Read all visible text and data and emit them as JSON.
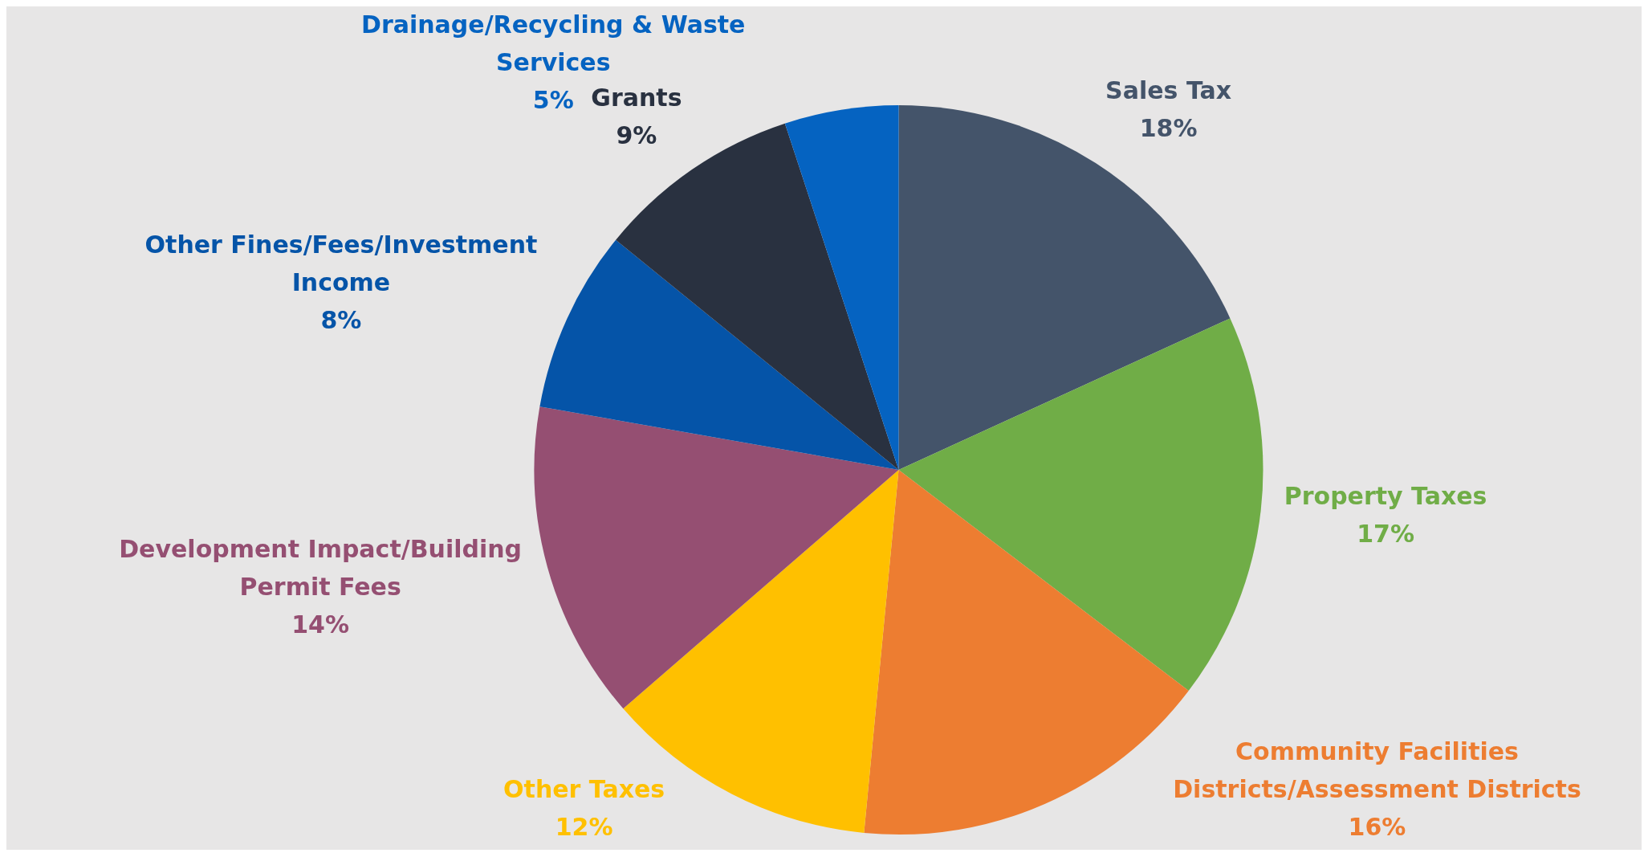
{
  "chart_data": {
    "type": "pie",
    "categories": [
      "Sales Tax",
      "Property Taxes",
      "Community Facilities Districts/Assessment Districts",
      "Other Taxes",
      "Development Impact/Building Permit Fees",
      "Other Fines/Fees/Investment Income",
      "Grants",
      "Drainage/Recycling & Waste Services"
    ],
    "values": [
      18,
      17,
      16,
      12,
      14,
      8,
      9,
      5
    ],
    "colors": [
      "#44546a",
      "#70ad47",
      "#ed7d31",
      "#ffc000",
      "#954f72",
      "#0554a8",
      "#293140",
      "#0563c1"
    ],
    "value_labels": [
      "18%",
      "17%",
      "16%",
      "12%",
      "14%",
      "8%",
      "9%",
      "5%"
    ],
    "legend": false
  }
}
